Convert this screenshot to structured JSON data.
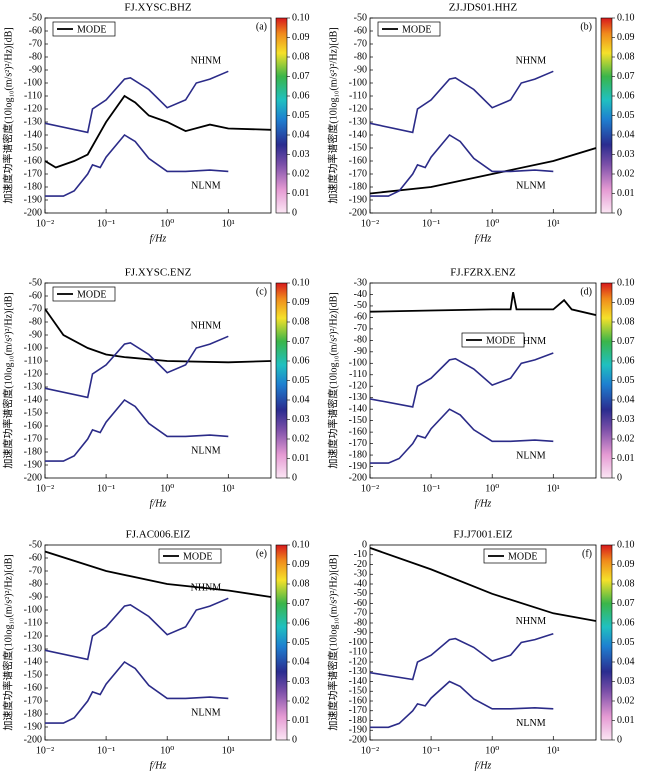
{
  "chart_data": [
    {
      "type": "line",
      "title": "FJ.XYSC.BHZ",
      "panel": "(a)",
      "ylabel": "加速度功率谱密度(10log₁₀(m/s²)²/Hz)[dB]",
      "xlabel": "f/Hz",
      "log_x": true,
      "legend": "upper left",
      "xlim": [
        0.01,
        50
      ],
      "xticks": [
        {
          "value": 0.01,
          "label": "10⁻²"
        },
        {
          "value": 0.1,
          "label": "10⁻¹"
        },
        {
          "value": 1,
          "label": "10⁰"
        },
        {
          "value": 10,
          "label": "10¹"
        }
      ],
      "ylim": [
        -200,
        -50
      ],
      "yticks": [
        -50,
        -60,
        -70,
        -80,
        -90,
        -100,
        -110,
        -120,
        -130,
        -140,
        -150,
        -160,
        -170,
        -180,
        -190,
        -200
      ],
      "colorbar_lim": [
        0,
        0.1
      ],
      "colorbar_ticks": [
        {
          "value": 0.1,
          "label": "0.10"
        },
        0.09,
        0.08,
        0.07,
        0.06,
        0.05,
        0.04,
        0.03,
        0.02,
        0.01,
        0
      ],
      "series": [
        {
          "name": "MODE",
          "color": "#000000",
          "x": [
            0.01,
            0.015,
            0.03,
            0.05,
            0.1,
            0.2,
            0.3,
            0.5,
            1,
            2,
            5,
            10,
            50
          ],
          "values": [
            -160,
            -165,
            -160,
            -155,
            -130,
            -110,
            -115,
            -125,
            -130,
            -137,
            -132,
            -135,
            -136
          ]
        },
        {
          "name": "NHNM",
          "color": "#2b2b88",
          "x": [
            0.01,
            0.05,
            0.06,
            0.1,
            0.2,
            0.25,
            0.5,
            1,
            2,
            3,
            5,
            10
          ],
          "values": [
            -131,
            -138,
            -120,
            -113,
            -97,
            -96,
            -105,
            -119,
            -113,
            -100,
            -97,
            -91
          ]
        },
        {
          "name": "NLNM",
          "color": "#2b2b88",
          "x": [
            0.01,
            0.02,
            0.03,
            0.05,
            0.06,
            0.08,
            0.1,
            0.2,
            0.3,
            0.5,
            1,
            2,
            5,
            10
          ],
          "values": [
            -187,
            -187,
            -183,
            -170,
            -163,
            -165,
            -157,
            -140,
            -145,
            -158,
            -168,
            -168,
            -167,
            -168
          ]
        }
      ]
    },
    {
      "type": "line",
      "title": "ZJ.JDS01.HHZ",
      "panel": "(b)",
      "ylabel": "加速度功率谱密度(10log₁₀(m/s²)²/Hz)[dB]",
      "xlabel": "f/Hz",
      "log_x": true,
      "legend": "upper left",
      "xlim": [
        0.01,
        50
      ],
      "xticks": [
        {
          "value": 0.01,
          "label": "10⁻²"
        },
        {
          "value": 0.1,
          "label": "10⁻¹"
        },
        {
          "value": 1,
          "label": "10⁰"
        },
        {
          "value": 10,
          "label": "10¹"
        }
      ],
      "ylim": [
        -200,
        -50
      ],
      "yticks": [
        -50,
        -60,
        -70,
        -80,
        -90,
        -100,
        -110,
        -120,
        -130,
        -140,
        -150,
        -160,
        -170,
        -180,
        -190,
        -200
      ],
      "colorbar_lim": [
        0,
        0.1
      ],
      "colorbar_ticks": [
        {
          "value": 0.1,
          "label": "0.10"
        },
        0.09,
        0.08,
        0.07,
        0.06,
        0.05,
        0.04,
        0.03,
        0.02,
        0.01,
        0
      ],
      "series": [
        {
          "name": "MODE",
          "color": "#000000",
          "x": [
            0.01,
            0.1,
            1,
            10,
            50
          ],
          "values": [
            -185,
            -180,
            -170,
            -160,
            -150
          ]
        },
        {
          "name": "NHNM",
          "color": "#2b2b88",
          "x": [
            0.01,
            0.05,
            0.06,
            0.1,
            0.2,
            0.25,
            0.5,
            1,
            2,
            3,
            5,
            10
          ],
          "values": [
            -131,
            -138,
            -120,
            -113,
            -97,
            -96,
            -105,
            -119,
            -113,
            -100,
            -97,
            -91
          ]
        },
        {
          "name": "NLNM",
          "color": "#2b2b88",
          "x": [
            0.01,
            0.02,
            0.03,
            0.05,
            0.06,
            0.08,
            0.1,
            0.2,
            0.3,
            0.5,
            1,
            2,
            5,
            10
          ],
          "values": [
            -187,
            -187,
            -183,
            -170,
            -163,
            -165,
            -157,
            -140,
            -145,
            -158,
            -168,
            -168,
            -167,
            -168
          ]
        }
      ]
    },
    {
      "type": "line",
      "title": "FJ.XYSC.ENZ",
      "panel": "(c)",
      "ylabel": "加速度功率谱密度(10log₁₀(m/s²)²/Hz)[dB]",
      "xlabel": "f/Hz",
      "log_x": true,
      "legend": "upper left",
      "xlim": [
        0.01,
        50
      ],
      "xticks": [
        {
          "value": 0.01,
          "label": "10⁻²"
        },
        {
          "value": 0.1,
          "label": "10⁻¹"
        },
        {
          "value": 1,
          "label": "10⁰"
        },
        {
          "value": 10,
          "label": "10¹"
        }
      ],
      "ylim": [
        -200,
        -50
      ],
      "yticks": [
        -50,
        -60,
        -70,
        -80,
        -90,
        -100,
        -110,
        -120,
        -130,
        -140,
        -150,
        -160,
        -170,
        -180,
        -190,
        -200
      ],
      "colorbar_lim": [
        0,
        0.1
      ],
      "colorbar_ticks": [
        {
          "value": 0.1,
          "label": "0.10"
        },
        0.09,
        0.08,
        0.07,
        0.06,
        0.05,
        0.04,
        0.03,
        0.02,
        0.01,
        0
      ],
      "series": [
        {
          "name": "MODE",
          "color": "#000000",
          "x": [
            0.01,
            0.02,
            0.05,
            0.1,
            0.2,
            1,
            10,
            50
          ],
          "values": [
            -70,
            -90,
            -100,
            -105,
            -107,
            -110,
            -111,
            -110
          ]
        },
        {
          "name": "NHNM",
          "color": "#2b2b88",
          "x": [
            0.01,
            0.05,
            0.06,
            0.1,
            0.2,
            0.25,
            0.5,
            1,
            2,
            3,
            5,
            10
          ],
          "values": [
            -131,
            -138,
            -120,
            -113,
            -97,
            -96,
            -105,
            -119,
            -113,
            -100,
            -97,
            -91
          ]
        },
        {
          "name": "NLNM",
          "color": "#2b2b88",
          "x": [
            0.01,
            0.02,
            0.03,
            0.05,
            0.06,
            0.08,
            0.1,
            0.2,
            0.3,
            0.5,
            1,
            2,
            5,
            10
          ],
          "values": [
            -187,
            -187,
            -183,
            -170,
            -163,
            -165,
            -157,
            -140,
            -145,
            -158,
            -168,
            -168,
            -167,
            -168
          ]
        }
      ]
    },
    {
      "type": "line",
      "title": "FJ.FZRX.ENZ",
      "panel": "(d)",
      "ylabel": "加速度功率谱密度(10log₁₀(m/s²)²/Hz)[dB]",
      "xlabel": "f/Hz",
      "log_x": true,
      "legend": "center",
      "xlim": [
        0.01,
        50
      ],
      "xticks": [
        {
          "value": 0.01,
          "label": "10⁻²"
        },
        {
          "value": 0.1,
          "label": "10⁻¹"
        },
        {
          "value": 1,
          "label": "10⁰"
        },
        {
          "value": 10,
          "label": "10¹"
        }
      ],
      "ylim": [
        -200,
        -30
      ],
      "yticks": [
        -30,
        -40,
        -50,
        -60,
        -70,
        -80,
        -90,
        -100,
        -110,
        -120,
        -130,
        -140,
        -150,
        -160,
        -170,
        -180,
        -190,
        -200
      ],
      "colorbar_lim": [
        0,
        0.1
      ],
      "colorbar_ticks": [
        {
          "value": 0.1,
          "label": "0.10"
        },
        0.09,
        0.08,
        0.07,
        0.06,
        0.05,
        0.04,
        0.03,
        0.02,
        0.01,
        0
      ],
      "series": [
        {
          "name": "MODE",
          "color": "#000000",
          "x": [
            0.01,
            0.1,
            1,
            2,
            2.2,
            2.5,
            10,
            15,
            20,
            50
          ],
          "values": [
            -55,
            -54,
            -53,
            -53,
            -38,
            -53,
            -53,
            -45,
            -53,
            -58
          ]
        },
        {
          "name": "NHNM",
          "color": "#2b2b88",
          "x": [
            0.01,
            0.05,
            0.06,
            0.1,
            0.2,
            0.25,
            0.5,
            1,
            2,
            3,
            5,
            10
          ],
          "values": [
            -131,
            -138,
            -120,
            -113,
            -97,
            -96,
            -105,
            -119,
            -113,
            -100,
            -97,
            -91
          ]
        },
        {
          "name": "NLNM",
          "color": "#2b2b88",
          "x": [
            0.01,
            0.02,
            0.03,
            0.05,
            0.06,
            0.08,
            0.1,
            0.2,
            0.3,
            0.5,
            1,
            2,
            5,
            10
          ],
          "values": [
            -187,
            -187,
            -183,
            -170,
            -163,
            -165,
            -157,
            -140,
            -145,
            -158,
            -168,
            -168,
            -167,
            -168
          ]
        }
      ]
    },
    {
      "type": "line",
      "title": "FJ.AC006.EIZ",
      "panel": "(e)",
      "ylabel": "加速度功率谱密度(10log₁₀(m/s²)²/Hz)[dB]",
      "xlabel": "f/Hz",
      "log_x": true,
      "legend": "upper right",
      "xlim": [
        0.01,
        50
      ],
      "xticks": [
        {
          "value": 0.01,
          "label": "10⁻²"
        },
        {
          "value": 0.1,
          "label": "10⁻¹"
        },
        {
          "value": 1,
          "label": "10⁰"
        },
        {
          "value": 10,
          "label": "10¹"
        }
      ],
      "ylim": [
        -200,
        -50
      ],
      "yticks": [
        -50,
        -60,
        -70,
        -80,
        -90,
        -100,
        -110,
        -120,
        -130,
        -140,
        -150,
        -160,
        -170,
        -180,
        -190,
        -200
      ],
      "colorbar_lim": [
        0,
        0.1
      ],
      "colorbar_ticks": [
        {
          "value": 0.1,
          "label": "0.10"
        },
        0.09,
        0.08,
        0.07,
        0.06,
        0.05,
        0.04,
        0.03,
        0.02,
        0.01,
        0
      ],
      "series": [
        {
          "name": "MODE",
          "color": "#000000",
          "x": [
            0.01,
            0.1,
            1,
            10,
            50
          ],
          "values": [
            -55,
            -70,
            -80,
            -85,
            -90
          ]
        },
        {
          "name": "NHNM",
          "color": "#2b2b88",
          "x": [
            0.01,
            0.05,
            0.06,
            0.1,
            0.2,
            0.25,
            0.5,
            1,
            2,
            3,
            5,
            10
          ],
          "values": [
            -131,
            -138,
            -120,
            -113,
            -97,
            -96,
            -105,
            -119,
            -113,
            -100,
            -97,
            -91
          ]
        },
        {
          "name": "NLNM",
          "color": "#2b2b88",
          "x": [
            0.01,
            0.02,
            0.03,
            0.05,
            0.06,
            0.08,
            0.1,
            0.2,
            0.3,
            0.5,
            1,
            2,
            5,
            10
          ],
          "values": [
            -187,
            -187,
            -183,
            -170,
            -163,
            -165,
            -157,
            -140,
            -145,
            -158,
            -168,
            -168,
            -167,
            -168
          ]
        }
      ]
    },
    {
      "type": "line",
      "title": "FJ.J7001.EIZ",
      "panel": "(f)",
      "ylabel": "加速度功率谱密度(10log₁₀(m/s²)²/Hz)[dB]",
      "xlabel": "f/Hz",
      "log_x": true,
      "legend": "upper right",
      "xlim": [
        0.01,
        50
      ],
      "xticks": [
        {
          "value": 0.01,
          "label": "10⁻²"
        },
        {
          "value": 0.1,
          "label": "10⁻¹"
        },
        {
          "value": 1,
          "label": "10⁰"
        },
        {
          "value": 10,
          "label": "10¹"
        }
      ],
      "ylim": [
        -200,
        0
      ],
      "yticks": [
        0,
        -10,
        -20,
        -30,
        -40,
        -50,
        -60,
        -70,
        -80,
        -90,
        -100,
        -110,
        -120,
        -130,
        -140,
        -150,
        -160,
        -170,
        -180,
        -190,
        -200
      ],
      "colorbar_lim": [
        0,
        0.1
      ],
      "colorbar_ticks": [
        {
          "value": 0.1,
          "label": "0.10"
        },
        0.09,
        0.08,
        0.07,
        0.06,
        0.05,
        0.04,
        0.03,
        0.02,
        0.01,
        0
      ],
      "series": [
        {
          "name": "MODE",
          "color": "#000000",
          "x": [
            0.01,
            0.1,
            1,
            10,
            50
          ],
          "values": [
            -3,
            -25,
            -50,
            -70,
            -78
          ]
        },
        {
          "name": "NHNM",
          "color": "#2b2b88",
          "x": [
            0.01,
            0.05,
            0.06,
            0.1,
            0.2,
            0.25,
            0.5,
            1,
            2,
            3,
            5,
            10
          ],
          "values": [
            -131,
            -138,
            -120,
            -113,
            -97,
            -96,
            -105,
            -119,
            -113,
            -100,
            -97,
            -91
          ]
        },
        {
          "name": "NLNM",
          "color": "#2b2b88",
          "x": [
            0.01,
            0.02,
            0.03,
            0.05,
            0.06,
            0.08,
            0.1,
            0.2,
            0.3,
            0.5,
            1,
            2,
            5,
            10
          ],
          "values": [
            -187,
            -187,
            -183,
            -170,
            -163,
            -165,
            -157,
            -140,
            -145,
            -158,
            -168,
            -168,
            -167,
            -168
          ]
        }
      ]
    }
  ]
}
